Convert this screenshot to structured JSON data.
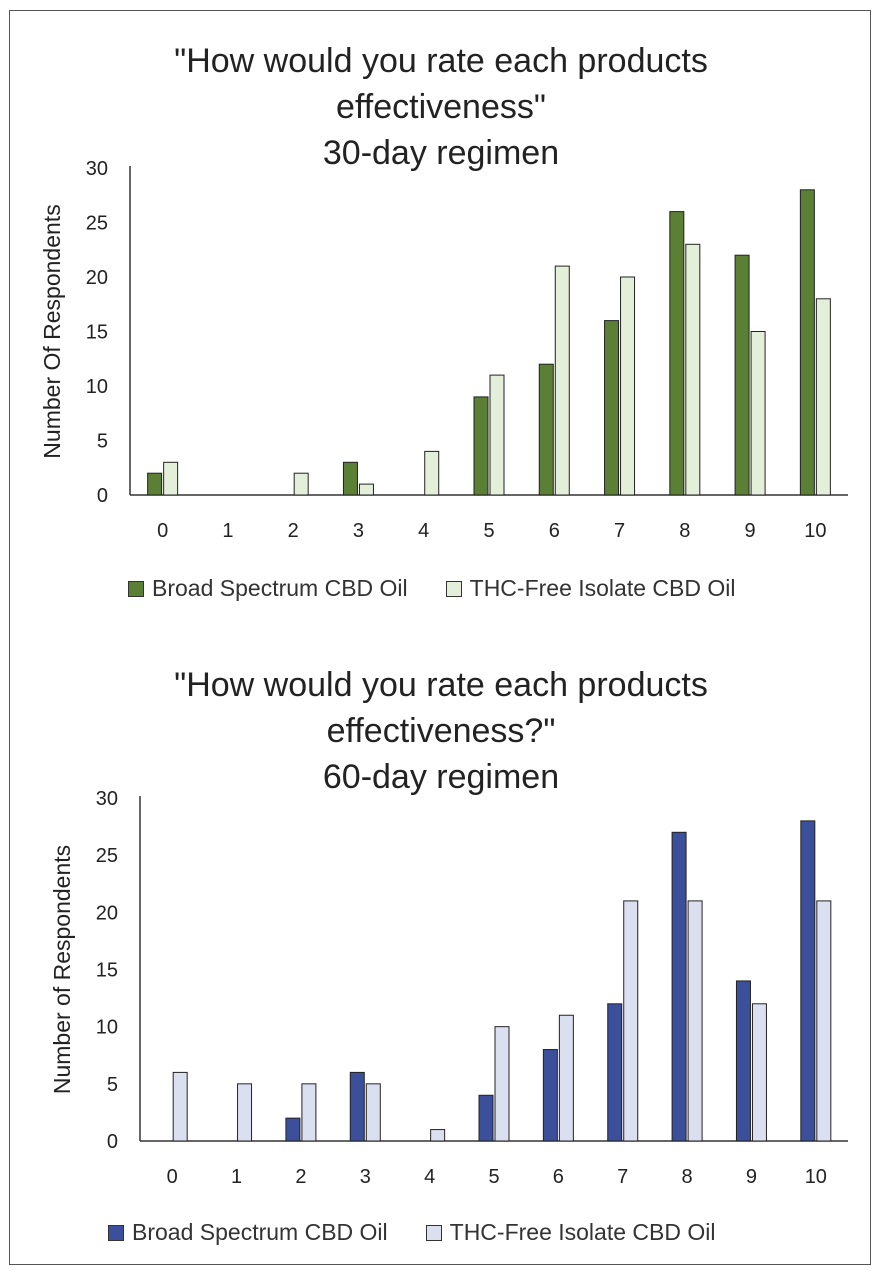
{
  "chart_data": [
    {
      "type": "bar",
      "title_lines": [
        "\"How would you rate each products",
        "effectiveness\"",
        "30-day regimen"
      ],
      "xlabel": "",
      "ylabel": "Number Of Respondents",
      "ylim": [
        0,
        30
      ],
      "yticks": [
        0,
        5,
        10,
        15,
        20,
        25,
        30
      ],
      "categories": [
        "0",
        "1",
        "2",
        "3",
        "4",
        "5",
        "6",
        "7",
        "8",
        "9",
        "10"
      ],
      "series": [
        {
          "name": "Broad Spectrum CBD Oil",
          "color": "#5a7f35",
          "values": [
            2,
            0,
            0,
            3,
            0,
            9,
            12,
            16,
            26,
            22,
            28
          ]
        },
        {
          "name": "THC-Free Isolate CBD Oil",
          "color": "#e4efd9",
          "values": [
            3,
            0,
            2,
            1,
            4,
            11,
            21,
            20,
            23,
            15,
            18
          ]
        }
      ],
      "grid": false,
      "legend_position": "bottom"
    },
    {
      "type": "bar",
      "title_lines": [
        "\"How would you rate each products",
        "effectiveness?\"",
        "60-day regimen"
      ],
      "xlabel": "",
      "ylabel": "Number of Respondents",
      "ylim": [
        0,
        30
      ],
      "yticks": [
        0,
        5,
        10,
        15,
        20,
        25,
        30
      ],
      "categories": [
        "0",
        "1",
        "2",
        "3",
        "4",
        "5",
        "6",
        "7",
        "8",
        "9",
        "10"
      ],
      "series": [
        {
          "name": "Broad Spectrum CBD Oil",
          "color": "#3c4f9a",
          "values": [
            0,
            0,
            2,
            6,
            0,
            4,
            8,
            12,
            27,
            14,
            28
          ]
        },
        {
          "name": "THC-Free Isolate CBD Oil",
          "color": "#dcdff0",
          "values": [
            6,
            5,
            5,
            5,
            1,
            10,
            11,
            21,
            21,
            12,
            21
          ]
        }
      ],
      "grid": false,
      "legend_position": "bottom"
    }
  ]
}
